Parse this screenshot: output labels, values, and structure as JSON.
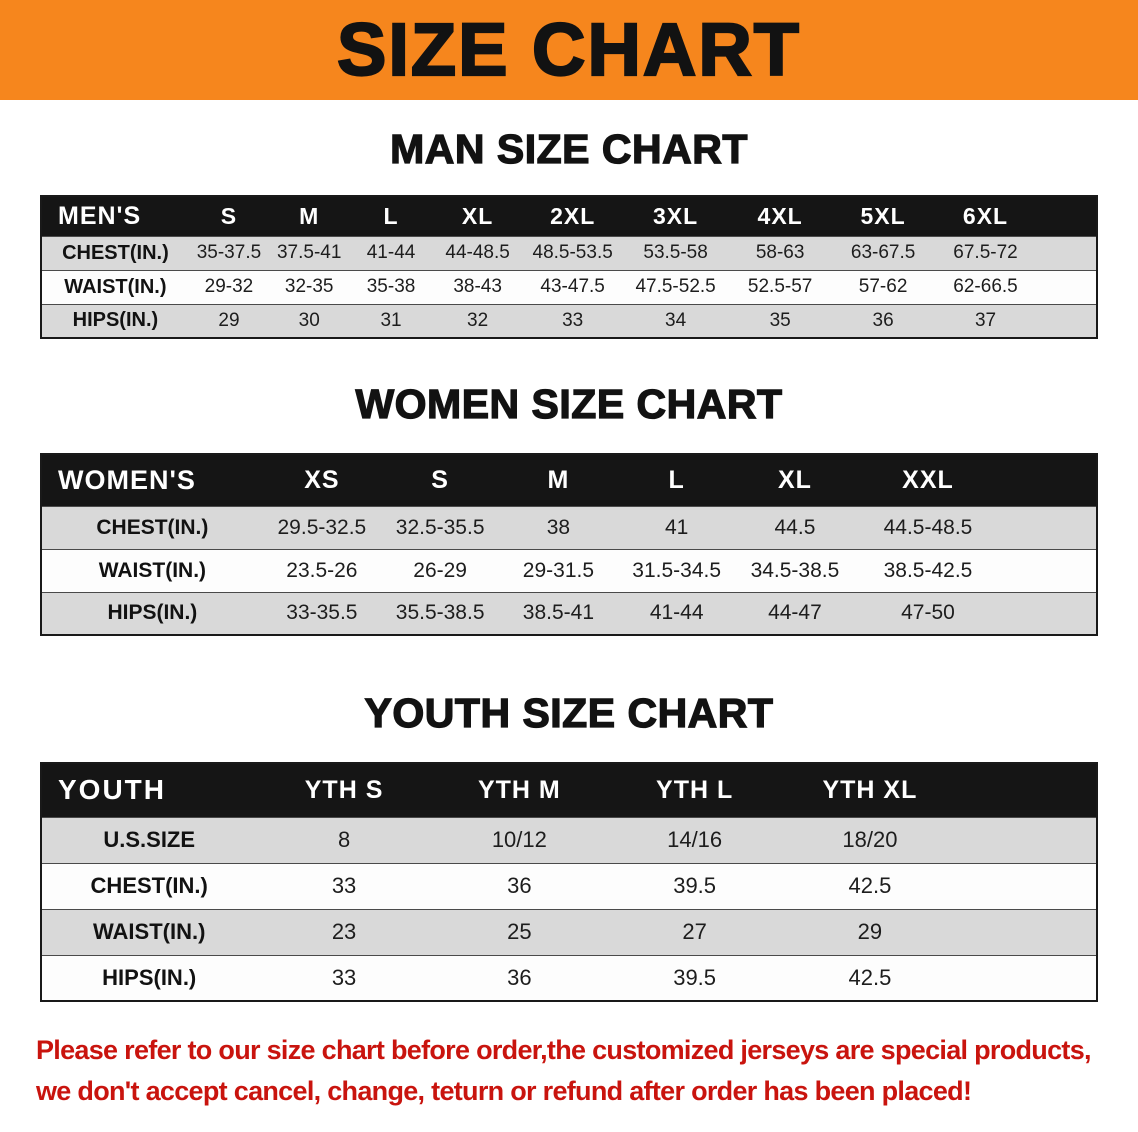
{
  "banner": {
    "title": "SIZE CHART",
    "bg_color": "#f6861d"
  },
  "sections": [
    {
      "id": "men",
      "heading": "MAN SIZE CHART",
      "table": {
        "header": [
          "MEN'S",
          "S",
          "M",
          "L",
          "XL",
          "2XL",
          "3XL",
          "4XL",
          "5XL",
          "6XL"
        ],
        "rows": [
          [
            "CHEST(IN.)",
            "35-37.5",
            "37.5-41",
            "41-44",
            "44-48.5",
            "48.5-53.5",
            "53.5-58",
            "58-63",
            "63-67.5",
            "67.5-72"
          ],
          [
            "WAIST(IN.)",
            "29-32",
            "32-35",
            "35-38",
            "38-43",
            "43-47.5",
            "47.5-52.5",
            "52.5-57",
            "57-62",
            "62-66.5"
          ],
          [
            "HIPS(IN.)",
            "29",
            "30",
            "31",
            "32",
            "33",
            "34",
            "35",
            "36",
            "37"
          ]
        ]
      }
    },
    {
      "id": "women",
      "heading": "WOMEN SIZE CHART",
      "table": {
        "header": [
          "WOMEN'S",
          "XS",
          "S",
          "M",
          "L",
          "XL",
          "XXL"
        ],
        "rows": [
          [
            "CHEST(IN.)",
            "29.5-32.5",
            "32.5-35.5",
            "38",
            "41",
            "44.5",
            "44.5-48.5"
          ],
          [
            "WAIST(IN.)",
            "23.5-26",
            "26-29",
            "29-31.5",
            "31.5-34.5",
            "34.5-38.5",
            "38.5-42.5"
          ],
          [
            "HIPS(IN.)",
            "33-35.5",
            "35.5-38.5",
            "38.5-41",
            "41-44",
            "44-47",
            "47-50"
          ]
        ]
      }
    },
    {
      "id": "youth",
      "heading": "YOUTH SIZE CHART",
      "table": {
        "header": [
          "YOUTH",
          "YTH S",
          "YTH M",
          "YTH L",
          "YTH XL"
        ],
        "rows": [
          [
            "U.S.SIZE",
            "8",
            "10/12",
            "14/16",
            "18/20"
          ],
          [
            "CHEST(IN.)",
            "33",
            "36",
            "39.5",
            "42.5"
          ],
          [
            "WAIST(IN.)",
            "23",
            "25",
            "27",
            "29"
          ],
          [
            "HIPS(IN.)",
            "33",
            "36",
            "39.5",
            "42.5"
          ]
        ]
      }
    }
  ],
  "disclaimer": {
    "text_color": "#c9140e",
    "lines": [
      "Please refer to our size chart before order,the customized jerseys are special products,",
      "we don't accept cancel, change, teturn or refund after order has been placed!"
    ]
  }
}
